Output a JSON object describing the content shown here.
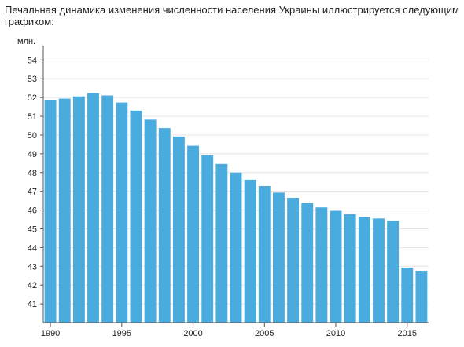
{
  "caption": "Печальная динамика изменения численности населения Украины иллюстрируется следующим графиком:",
  "chart_data": {
    "type": "bar",
    "ylabel": "млн.",
    "x": [
      1990,
      1991,
      1992,
      1993,
      1994,
      1995,
      1996,
      1997,
      1998,
      1999,
      2000,
      2001,
      2002,
      2003,
      2004,
      2005,
      2006,
      2007,
      2008,
      2009,
      2010,
      2011,
      2012,
      2013,
      2014,
      2015,
      2016
    ],
    "values": [
      51.84,
      51.94,
      52.06,
      52.24,
      52.11,
      51.73,
      51.3,
      50.82,
      50.37,
      49.92,
      49.43,
      48.92,
      48.46,
      48.0,
      47.62,
      47.28,
      46.93,
      46.65,
      46.37,
      46.14,
      45.96,
      45.78,
      45.63,
      45.55,
      45.43,
      42.93,
      42.76
    ],
    "ylim": [
      40,
      54.6
    ],
    "yticks": [
      41,
      42,
      43,
      44,
      45,
      46,
      47,
      48,
      49,
      50,
      51,
      52,
      53,
      54
    ],
    "xticks": [
      1990,
      1995,
      2000,
      2005,
      2010,
      2015
    ],
    "grid": true,
    "colors": {
      "bar": "#4aabde",
      "grid": "#e4e4e4",
      "axis": "#555555"
    }
  }
}
